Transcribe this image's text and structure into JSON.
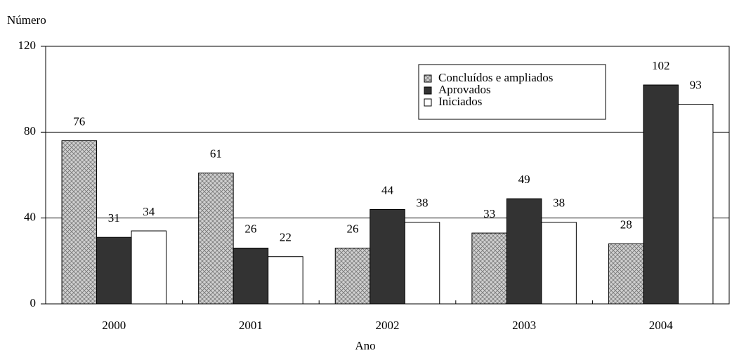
{
  "chart_data": {
    "type": "bar",
    "y_label": "Número",
    "x_label": "Ano",
    "categories": [
      "2000",
      "2001",
      "2002",
      "2003",
      "2004"
    ],
    "series": [
      {
        "name": "Concluídos e ampliados",
        "color": "#d0d0d0",
        "pattern": "crosshatch",
        "values": [
          76,
          61,
          26,
          33,
          28
        ]
      },
      {
        "name": "Aprovados",
        "color": "#333333",
        "values": [
          31,
          26,
          44,
          49,
          102
        ]
      },
      {
        "name": "Iniciados",
        "color": "#ffffff",
        "values": [
          34,
          22,
          38,
          38,
          93
        ]
      }
    ],
    "ylim": [
      0,
      120
    ],
    "yticks": [
      0,
      40,
      80,
      120
    ],
    "grid": true,
    "legend": "top-right"
  }
}
